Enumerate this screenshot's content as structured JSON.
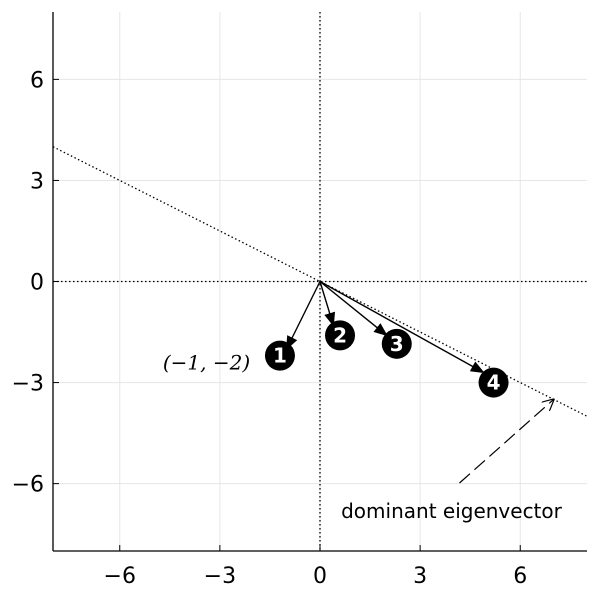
{
  "chart_data": {
    "type": "scatter",
    "title": "",
    "xlabel": "",
    "ylabel": "",
    "xlim": [
      -8,
      8
    ],
    "ylim": [
      -8,
      8
    ],
    "xticks": [
      -6,
      -3,
      0,
      3,
      6
    ],
    "yticks": [
      -6,
      -3,
      0,
      3,
      6
    ],
    "tick_labels": {
      "x": [
        "−6",
        "−3",
        "0",
        "3",
        "6"
      ],
      "y": [
        "−6",
        "−3",
        "0",
        "3",
        "6"
      ]
    },
    "grid": true,
    "reference_lines": [
      {
        "kind": "horizontal",
        "y": 0,
        "style": "dotted"
      },
      {
        "kind": "vertical",
        "x": 0,
        "style": "dotted"
      },
      {
        "kind": "line_through_origin",
        "slope": -0.5,
        "style": "dotted"
      }
    ],
    "vectors": [
      {
        "label": "1",
        "from": [
          0,
          0
        ],
        "to": [
          -1,
          -2
        ],
        "badge": [
          -1.2,
          -2.2
        ]
      },
      {
        "label": "2",
        "from": [
          0,
          0
        ],
        "to": [
          0.4,
          -1.3
        ],
        "badge": [
          0.6,
          -1.6
        ]
      },
      {
        "label": "3",
        "from": [
          0,
          0
        ],
        "to": [
          2.0,
          -1.6
        ],
        "badge": [
          2.3,
          -1.85
        ]
      },
      {
        "label": "4",
        "from": [
          0,
          0
        ],
        "to": [
          4.9,
          -2.7
        ],
        "badge": [
          5.2,
          -3.0
        ]
      }
    ],
    "point_label": {
      "text": "(−1, −2)",
      "x": -3.4,
      "y": -2.4
    },
    "annotation": {
      "text": "dominant eigenvector",
      "text_at": [
        4,
        -6.6
      ],
      "arrow_from": [
        4,
        -6.1
      ],
      "arrow_to": [
        7.0,
        -3.5
      ]
    }
  }
}
